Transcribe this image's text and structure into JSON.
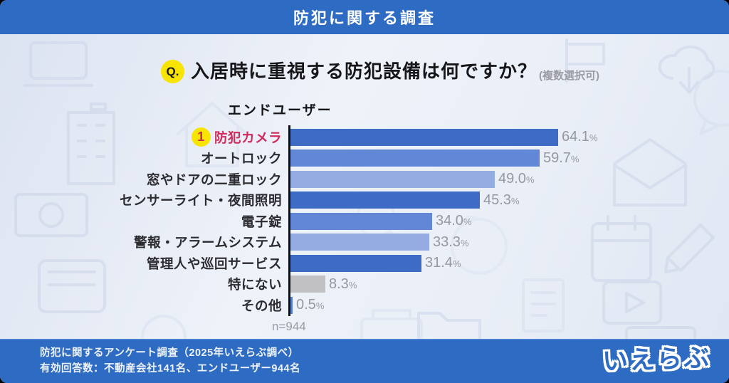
{
  "header": {
    "title": "防犯に関する調査"
  },
  "question": {
    "badge": "Q.",
    "text": "入居時に重視する防犯設備は何ですか？",
    "note": "(複数選択可)"
  },
  "chart_data": {
    "type": "bar",
    "orientation": "horizontal",
    "title": "エンドユーザー",
    "categories": [
      "防犯カメラ",
      "オートロック",
      "窓やドアの二重ロック",
      "センサーライト・夜間照明",
      "電子錠",
      "警報・アラームシステム",
      "管理人や巡回サービス",
      "特にない",
      "その他"
    ],
    "values": [
      64.1,
      59.7,
      49.0,
      45.3,
      34.0,
      33.3,
      31.4,
      8.3,
      0.5
    ],
    "value_suffix": "%",
    "rank1_badge": "1",
    "rank1_category": "防犯カメラ",
    "sample_label": "n=944",
    "xlim": [
      0,
      68.2
    ],
    "gridlines": false,
    "legend": "none",
    "bar_colors": [
      "#3e6cc4",
      "#6187d6",
      "#94ace2",
      "#3e6cc4",
      "#6187d6",
      "#94ace2",
      "#3e6cc4",
      "#c1c1c3",
      "#5580d3"
    ]
  },
  "footer": {
    "line1": "防犯に関するアンケート調査（2025年いえらぶ調べ）",
    "line2": "有効回答数：不動産会社141名、エンドユーザー944名",
    "logo": "いえらぶ"
  },
  "colors": {
    "header_footer_blue": "#2e6bc3",
    "bar_dark_blue": "#3e6cc4",
    "bar_medium_blue": "#6187d6",
    "bar_light_blue": "#94ace2",
    "bar_gray": "#c1c1c3",
    "bar_other_blue": "#5580d3",
    "rank_highlight_red": "#d02a5c",
    "badge_yellow": "#f7e400",
    "value_text_gray": "#97989f"
  }
}
